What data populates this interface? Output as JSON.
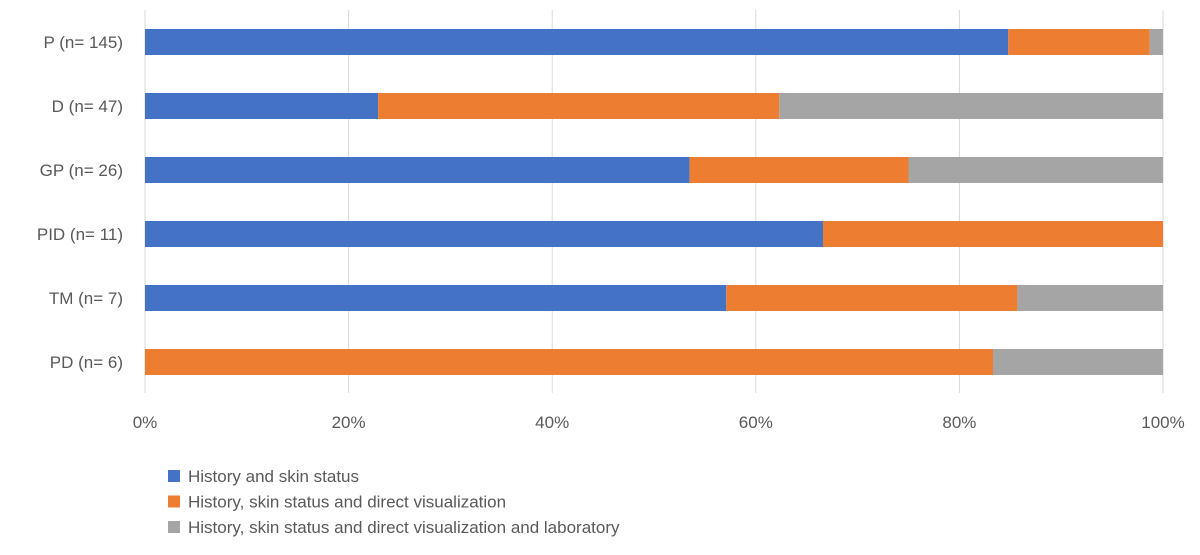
{
  "chart_data": {
    "type": "bar",
    "orientation": "horizontal",
    "stacked": "percent",
    "categories": [
      "P (n= 145)",
      "D (n= 47)",
      "GP (n= 26)",
      "PID (n= 11)",
      "TM (n= 7)",
      "PD (n= 6)"
    ],
    "series": [
      {
        "name": "History and skin status",
        "color": "#4472C4",
        "values": [
          84.8,
          22.9,
          53.5,
          66.6,
          57.1,
          0
        ]
      },
      {
        "name": "History, skin status and direct visualization",
        "color": "#ED7D31",
        "values": [
          13.9,
          39.4,
          21.5,
          33.4,
          28.6,
          83.3
        ]
      },
      {
        "name": "History, skin status and direct visualization and laboratory",
        "color": "#A5A5A5",
        "values": [
          1.3,
          37.7,
          25.0,
          0,
          14.3,
          16.7
        ]
      }
    ],
    "xticks": [
      "0%",
      "20%",
      "40%",
      "60%",
      "80%",
      "100%"
    ],
    "xlim": [
      0,
      100
    ],
    "grid": true,
    "legend": "bottom-left",
    "title": "",
    "xlabel": "",
    "ylabel": ""
  }
}
